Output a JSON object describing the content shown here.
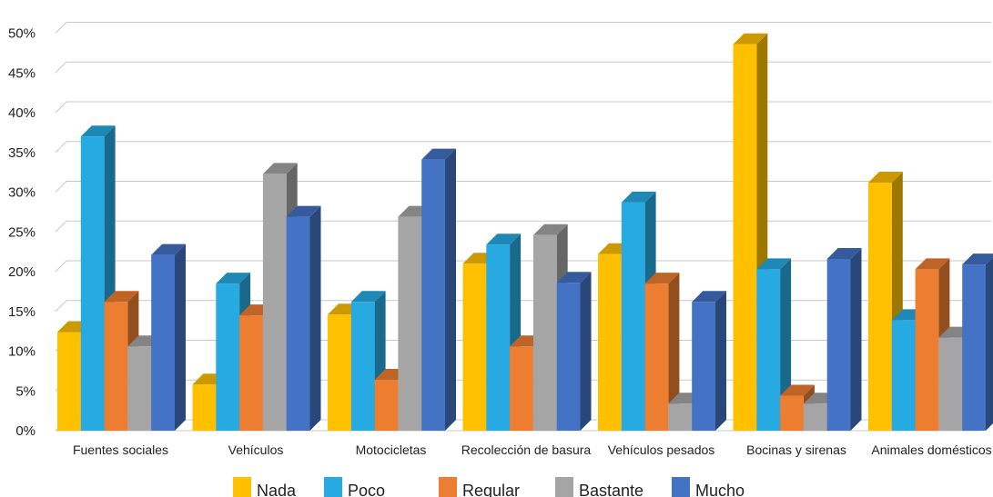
{
  "chart_data": {
    "type": "bar",
    "title": "",
    "xlabel": "",
    "ylabel": "",
    "ylim": [
      0,
      50
    ],
    "y_ticks": [
      "0%",
      "5%",
      "10%",
      "15%",
      "20%",
      "25%",
      "30%",
      "35%",
      "40%",
      "45%",
      "50%"
    ],
    "grid": true,
    "legend_position": "bottom",
    "categories": [
      "Fuentes sociales",
      "Vehículos",
      "Motocicletas",
      "Recolección de basura",
      "Vehículos pesados",
      "Bocinas y sirenas",
      "Animales domésticos"
    ],
    "series": [
      {
        "name": "Nada",
        "color": "#FFC000",
        "values": [
          12.4,
          5.8,
          14.6,
          21.0,
          22.2,
          48.6,
          31.2
        ]
      },
      {
        "name": "Poco",
        "color": "#27AAE1",
        "values": [
          37.0,
          18.5,
          16.2,
          23.4,
          28.7,
          20.3,
          13.9
        ]
      },
      {
        "name": "Regular",
        "color": "#ED7D31",
        "values": [
          16.2,
          14.5,
          6.4,
          10.6,
          18.5,
          4.4,
          20.3
        ]
      },
      {
        "name": "Bastante",
        "color": "#A5A5A5",
        "values": [
          10.6,
          32.3,
          26.9,
          24.6,
          3.4,
          3.4,
          11.7
        ]
      },
      {
        "name": "Mucho",
        "color": "#4472C4",
        "values": [
          22.1,
          26.9,
          34.1,
          18.6,
          16.2,
          21.6,
          20.9
        ]
      }
    ]
  }
}
